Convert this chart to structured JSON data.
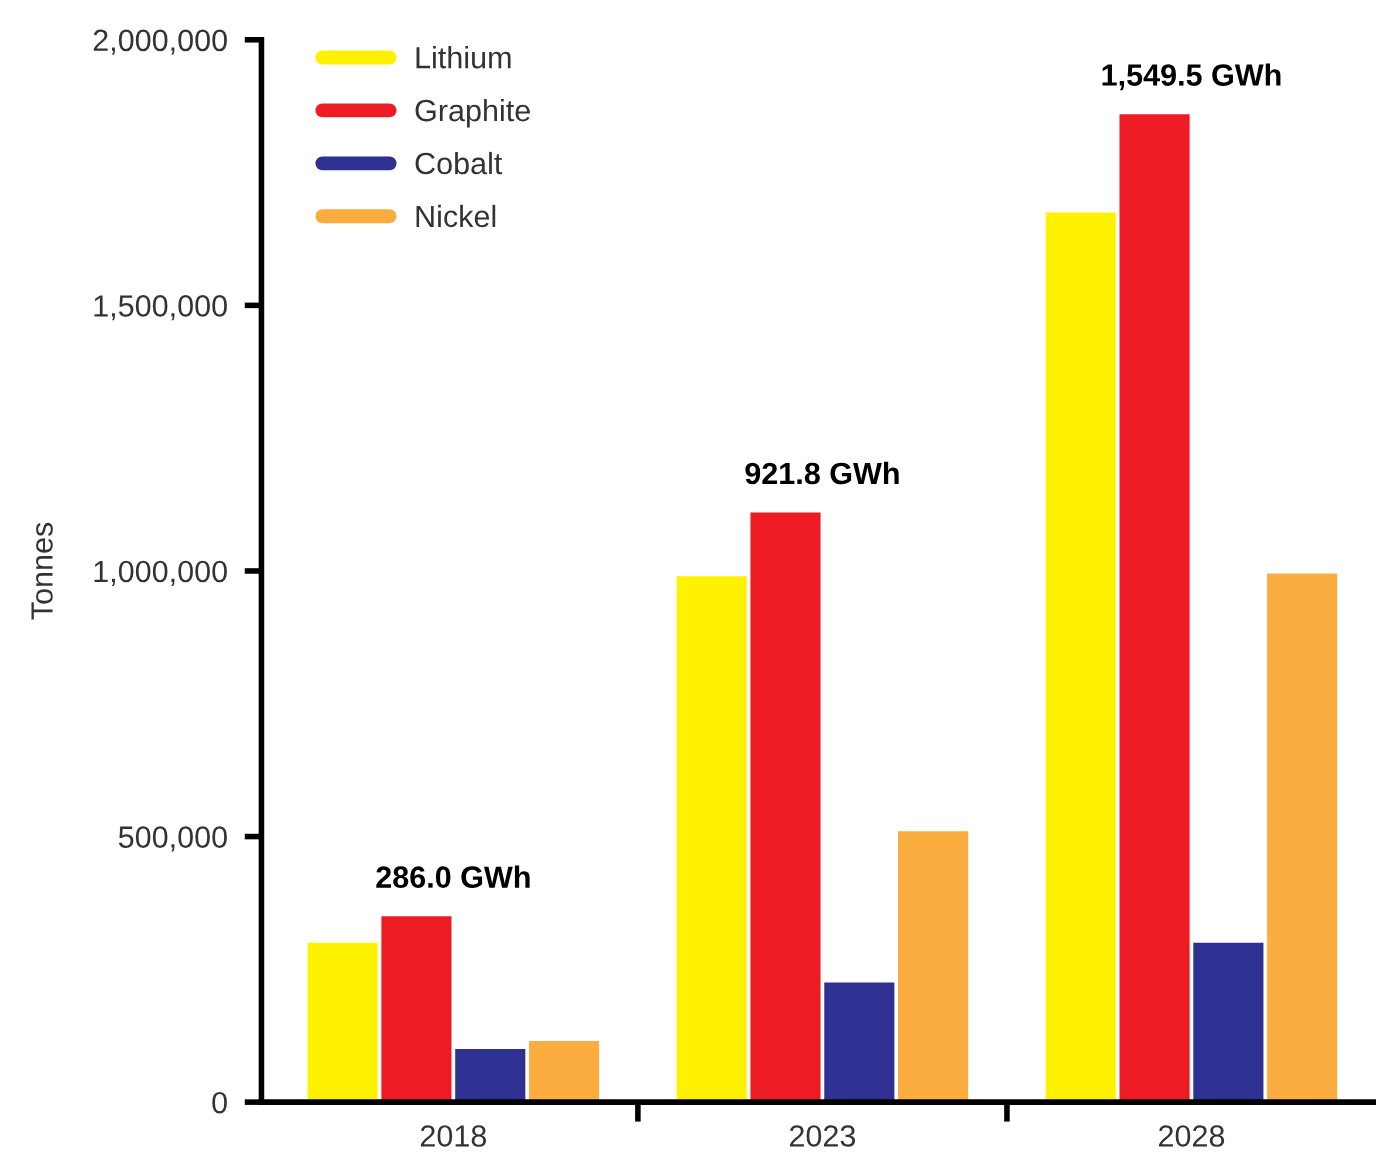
{
  "chart_data": {
    "type": "bar",
    "ylabel": "Tonnes",
    "categories": [
      "2018",
      "2023",
      "2028"
    ],
    "series": [
      {
        "name": "Lithium",
        "color": "#fff200",
        "values": [
          300000,
          990000,
          1675000
        ]
      },
      {
        "name": "Graphite",
        "color": "#ed1c24",
        "values": [
          350000,
          1110000,
          1860000
        ]
      },
      {
        "name": "Cobalt",
        "color": "#2e3192",
        "values": [
          100000,
          225000,
          300000
        ]
      },
      {
        "name": "Nickel",
        "color": "#fbad3f",
        "values": [
          115000,
          510000,
          995000
        ]
      }
    ],
    "ylim": [
      0,
      2000000
    ],
    "yticks": [
      {
        "value": 0,
        "label": "0"
      },
      {
        "value": 500000,
        "label": "500,000"
      },
      {
        "value": 1000000,
        "label": "1,000,000"
      },
      {
        "value": 1500000,
        "label": "1,500,000"
      },
      {
        "value": 2000000,
        "label": "2,000,000"
      }
    ],
    "annotations": [
      {
        "text": "286.0 GWh",
        "x": "2018",
        "y": 350000
      },
      {
        "text": "921.8 GWh",
        "x": "2023",
        "y": 1110000
      },
      {
        "text": "1,549.5 GWh",
        "x": "2028",
        "y": 1860000
      }
    ],
    "legend": "top left",
    "grid": false
  }
}
